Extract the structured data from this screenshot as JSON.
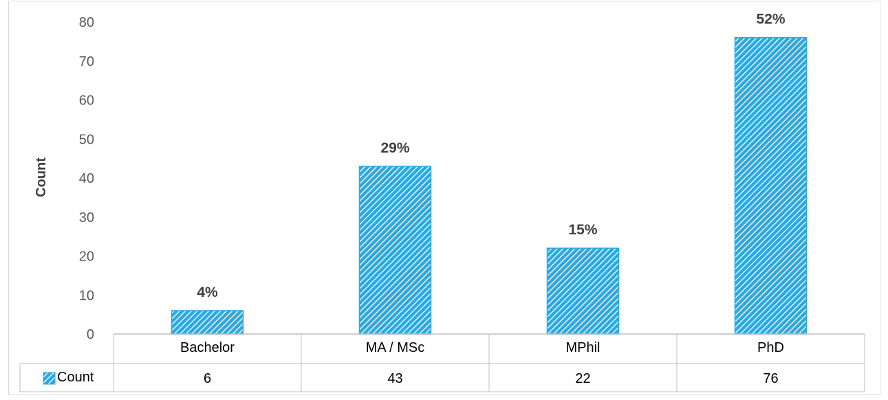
{
  "chart_data": {
    "type": "bar",
    "categories": [
      "Bachelor",
      "MA / MSc",
      "MPhil",
      "PhD"
    ],
    "series": [
      {
        "name": "Count",
        "values": [
          6,
          43,
          22,
          76
        ]
      }
    ],
    "data_labels": [
      "4%",
      "29%",
      "15%",
      "52%"
    ],
    "ylabel": "Count",
    "xlabel": "",
    "ylim": [
      0,
      80
    ],
    "yticks": [
      0,
      10,
      20,
      30,
      40,
      50,
      60,
      70,
      80
    ],
    "grid": false,
    "data_table": true,
    "legend_position": "data-table-left",
    "colors": {
      "bar_fill": "#2ea9df",
      "bar_hatch": "#ffffff",
      "axis": "#bfbfbf"
    }
  }
}
